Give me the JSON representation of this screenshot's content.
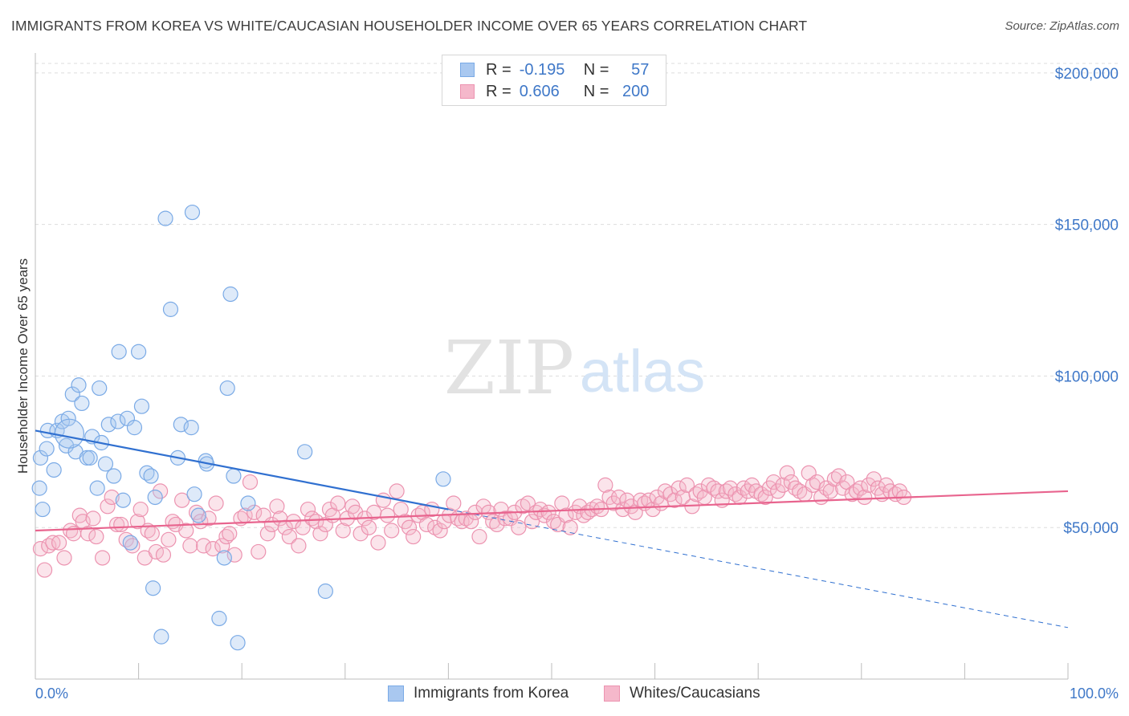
{
  "title": "IMMIGRANTS FROM KOREA VS WHITE/CAUCASIAN HOUSEHOLDER INCOME OVER 65 YEARS CORRELATION CHART",
  "source": "Source: ZipAtlas.com",
  "watermark": {
    "zip": "ZIP",
    "atlas": "atlas"
  },
  "colors": {
    "blue_fill": "#a9c8f0",
    "blue_stroke": "#7aaae6",
    "blue_line": "#3070d0",
    "pink_fill": "#f5b8cb",
    "pink_stroke": "#ec93b0",
    "pink_line": "#e8648e",
    "tick_text": "#3f78c8",
    "grid": "#dddddd"
  },
  "legend": {
    "rows": [
      {
        "r_label": "R =",
        "r_value": "-0.195",
        "n_label": "N =",
        "n_value": "57"
      },
      {
        "r_label": "R =",
        "r_value": "0.606",
        "n_label": "N =",
        "n_value": "200"
      }
    ]
  },
  "chart_data": {
    "type": "scatter",
    "title": "IMMIGRANTS FROM KOREA VS WHITE/CAUCASIAN HOUSEHOLDER INCOME OVER 65 YEARS CORRELATION CHART",
    "xlabel": "",
    "ylabel": "Householder Income Over 65 years",
    "xlim": [
      0,
      100
    ],
    "ylim": [
      0,
      205000
    ],
    "x_tick_labels": [
      "0.0%",
      "100.0%"
    ],
    "y_ticks": [
      50000,
      100000,
      150000,
      200000
    ],
    "y_tick_labels": [
      "$50,000",
      "$100,000",
      "$150,000",
      "$200,000"
    ],
    "grid": true,
    "legend_position": "top-center",
    "series": [
      {
        "name": "Immigrants from Korea",
        "trend": {
          "x0": 0,
          "y0": 82000,
          "x1": 40,
          "y1": 56000,
          "dashed_to_x": 100,
          "dashed_to_y": 17000
        },
        "points": [
          [
            0.4,
            63000
          ],
          [
            0.5,
            73000
          ],
          [
            0.7,
            56000
          ],
          [
            1.1,
            76000
          ],
          [
            1.2,
            82000
          ],
          [
            1.8,
            69000
          ],
          [
            2.1,
            82000
          ],
          [
            2.6,
            85000
          ],
          [
            3.0,
            77000
          ],
          [
            3.2,
            86000
          ],
          [
            3.6,
            94000
          ],
          [
            3.9,
            75000
          ],
          [
            4.2,
            97000
          ],
          [
            4.5,
            91000
          ],
          [
            5.0,
            73000
          ],
          [
            5.3,
            73000
          ],
          [
            5.5,
            80000
          ],
          [
            6.2,
            96000
          ],
          [
            6.4,
            78000
          ],
          [
            6.8,
            71000
          ],
          [
            7.1,
            84000
          ],
          [
            7.6,
            67000
          ],
          [
            8.0,
            85000
          ],
          [
            8.1,
            108000
          ],
          [
            8.5,
            59000
          ],
          [
            8.9,
            86000
          ],
          [
            9.2,
            45000
          ],
          [
            9.6,
            83000
          ],
          [
            10.0,
            108000
          ],
          [
            10.3,
            90000
          ],
          [
            10.8,
            68000
          ],
          [
            11.2,
            67000
          ],
          [
            11.4,
            30000
          ],
          [
            11.6,
            60000
          ],
          [
            12.2,
            14000
          ],
          [
            12.6,
            152000
          ],
          [
            13.1,
            122000
          ],
          [
            13.8,
            73000
          ],
          [
            14.1,
            84000
          ],
          [
            15.1,
            83000
          ],
          [
            15.2,
            154000
          ],
          [
            15.4,
            61000
          ],
          [
            15.8,
            54000
          ],
          [
            16.5,
            72000
          ],
          [
            16.6,
            71000
          ],
          [
            17.8,
            20000
          ],
          [
            18.3,
            40000
          ],
          [
            18.6,
            96000
          ],
          [
            18.9,
            127000
          ],
          [
            19.2,
            67000
          ],
          [
            19.6,
            12000
          ],
          [
            20.6,
            58000
          ],
          [
            26.1,
            75000
          ],
          [
            28.1,
            29000
          ],
          [
            39.5,
            66000
          ],
          [
            6.0,
            63000
          ],
          [
            3.3,
            81000
          ]
        ]
      },
      {
        "name": "Whites/Caucasians",
        "trend": {
          "x0": 0,
          "y0": 49000,
          "x1": 100,
          "y1": 62000
        },
        "points": [
          [
            0.5,
            43000
          ],
          [
            0.9,
            36000
          ],
          [
            1.3,
            44000
          ],
          [
            1.7,
            45000
          ],
          [
            2.3,
            45000
          ],
          [
            2.8,
            40000
          ],
          [
            3.4,
            49000
          ],
          [
            3.7,
            48000
          ],
          [
            4.3,
            54000
          ],
          [
            4.6,
            52000
          ],
          [
            5.1,
            48000
          ],
          [
            5.6,
            53000
          ],
          [
            5.9,
            47000
          ],
          [
            6.5,
            40000
          ],
          [
            7.0,
            57000
          ],
          [
            7.4,
            60000
          ],
          [
            7.9,
            51000
          ],
          [
            8.3,
            51000
          ],
          [
            8.8,
            46000
          ],
          [
            9.4,
            44000
          ],
          [
            9.9,
            52000
          ],
          [
            10.2,
            56000
          ],
          [
            10.6,
            40000
          ],
          [
            10.9,
            49000
          ],
          [
            11.3,
            48000
          ],
          [
            11.7,
            42000
          ],
          [
            12.1,
            62000
          ],
          [
            12.4,
            41000
          ],
          [
            12.9,
            46000
          ],
          [
            13.3,
            52000
          ],
          [
            13.6,
            51000
          ],
          [
            14.2,
            59000
          ],
          [
            14.6,
            49000
          ],
          [
            15.0,
            44000
          ],
          [
            15.6,
            55000
          ],
          [
            16.0,
            52000
          ],
          [
            16.3,
            44000
          ],
          [
            16.8,
            53000
          ],
          [
            17.2,
            43000
          ],
          [
            17.5,
            58000
          ],
          [
            18.1,
            44000
          ],
          [
            18.5,
            47000
          ],
          [
            18.8,
            48000
          ],
          [
            19.3,
            41000
          ],
          [
            19.9,
            53000
          ],
          [
            20.3,
            54000
          ],
          [
            20.8,
            65000
          ],
          [
            21.2,
            55000
          ],
          [
            21.6,
            42000
          ],
          [
            22.1,
            54000
          ],
          [
            22.5,
            48000
          ],
          [
            22.9,
            51000
          ],
          [
            23.4,
            57000
          ],
          [
            23.7,
            53000
          ],
          [
            24.2,
            50000
          ],
          [
            24.6,
            47000
          ],
          [
            25.0,
            52000
          ],
          [
            25.5,
            44000
          ],
          [
            25.9,
            50000
          ],
          [
            26.4,
            56000
          ],
          [
            26.8,
            53000
          ],
          [
            27.2,
            52000
          ],
          [
            27.6,
            48000
          ],
          [
            28.1,
            51000
          ],
          [
            28.5,
            56000
          ],
          [
            28.8,
            54000
          ],
          [
            29.3,
            58000
          ],
          [
            29.8,
            49000
          ],
          [
            30.2,
            53000
          ],
          [
            30.7,
            57000
          ],
          [
            31.0,
            55000
          ],
          [
            31.5,
            48000
          ],
          [
            31.9,
            53000
          ],
          [
            32.3,
            50000
          ],
          [
            32.8,
            55000
          ],
          [
            33.2,
            45000
          ],
          [
            33.7,
            59000
          ],
          [
            34.1,
            54000
          ],
          [
            34.5,
            49000
          ],
          [
            35.0,
            62000
          ],
          [
            35.4,
            56000
          ],
          [
            35.8,
            52000
          ],
          [
            36.2,
            50000
          ],
          [
            36.6,
            47000
          ],
          [
            37.1,
            54000
          ],
          [
            37.5,
            55000
          ],
          [
            37.9,
            51000
          ],
          [
            38.4,
            56000
          ],
          [
            38.7,
            50000
          ],
          [
            39.2,
            49000
          ],
          [
            39.6,
            52000
          ],
          [
            40.1,
            54000
          ],
          [
            40.5,
            58000
          ],
          [
            40.9,
            53000
          ],
          [
            41.3,
            52000
          ],
          [
            41.7,
            53000
          ],
          [
            42.2,
            52000
          ],
          [
            42.6,
            55000
          ],
          [
            43.0,
            47000
          ],
          [
            43.4,
            57000
          ],
          [
            43.9,
            55000
          ],
          [
            44.3,
            52000
          ],
          [
            44.7,
            51000
          ],
          [
            45.1,
            56000
          ],
          [
            45.5,
            53000
          ],
          [
            46.0,
            53000
          ],
          [
            46.4,
            55000
          ],
          [
            46.8,
            50000
          ],
          [
            47.2,
            57000
          ],
          [
            47.7,
            58000
          ],
          [
            48.1,
            52000
          ],
          [
            48.5,
            55000
          ],
          [
            48.9,
            56000
          ],
          [
            49.3,
            54000
          ],
          [
            49.7,
            55000
          ],
          [
            50.2,
            52000
          ],
          [
            50.6,
            51000
          ],
          [
            51.0,
            58000
          ],
          [
            51.4,
            54000
          ],
          [
            51.8,
            50000
          ],
          [
            52.3,
            55000
          ],
          [
            52.7,
            57000
          ],
          [
            53.1,
            54000
          ],
          [
            53.5,
            55000
          ],
          [
            53.9,
            56000
          ],
          [
            54.4,
            57000
          ],
          [
            54.8,
            56000
          ],
          [
            55.2,
            64000
          ],
          [
            55.6,
            60000
          ],
          [
            56.0,
            58000
          ],
          [
            56.5,
            60000
          ],
          [
            56.9,
            56000
          ],
          [
            57.3,
            59000
          ],
          [
            57.7,
            57000
          ],
          [
            58.1,
            55000
          ],
          [
            58.6,
            59000
          ],
          [
            59.0,
            58000
          ],
          [
            59.4,
            59000
          ],
          [
            59.8,
            56000
          ],
          [
            60.2,
            60000
          ],
          [
            60.6,
            58000
          ],
          [
            61.0,
            62000
          ],
          [
            61.5,
            61000
          ],
          [
            61.9,
            59000
          ],
          [
            62.3,
            63000
          ],
          [
            62.7,
            60000
          ],
          [
            63.1,
            64000
          ],
          [
            63.6,
            57000
          ],
          [
            64.0,
            61000
          ],
          [
            64.4,
            62000
          ],
          [
            64.8,
            60000
          ],
          [
            65.2,
            64000
          ],
          [
            65.7,
            63000
          ],
          [
            66.1,
            62000
          ],
          [
            66.5,
            59000
          ],
          [
            66.9,
            62000
          ],
          [
            67.3,
            63000
          ],
          [
            67.8,
            61000
          ],
          [
            68.2,
            60000
          ],
          [
            68.6,
            63000
          ],
          [
            69.0,
            62000
          ],
          [
            69.4,
            64000
          ],
          [
            69.8,
            62000
          ],
          [
            70.3,
            61000
          ],
          [
            70.7,
            60000
          ],
          [
            71.1,
            63000
          ],
          [
            71.5,
            65000
          ],
          [
            71.9,
            62000
          ],
          [
            72.4,
            64000
          ],
          [
            72.8,
            68000
          ],
          [
            73.2,
            65000
          ],
          [
            73.6,
            63000
          ],
          [
            74.0,
            62000
          ],
          [
            74.5,
            61000
          ],
          [
            74.9,
            68000
          ],
          [
            75.3,
            64000
          ],
          [
            75.7,
            65000
          ],
          [
            76.1,
            60000
          ],
          [
            76.6,
            63000
          ],
          [
            77.0,
            62000
          ],
          [
            77.4,
            66000
          ],
          [
            77.8,
            67000
          ],
          [
            78.2,
            63000
          ],
          [
            78.6,
            65000
          ],
          [
            79.1,
            61000
          ],
          [
            79.5,
            62000
          ],
          [
            79.9,
            63000
          ],
          [
            80.3,
            60000
          ],
          [
            80.7,
            64000
          ],
          [
            81.2,
            66000
          ],
          [
            81.6,
            63000
          ],
          [
            82.0,
            61000
          ],
          [
            82.4,
            64000
          ],
          [
            82.8,
            62000
          ],
          [
            83.3,
            61000
          ],
          [
            83.7,
            62000
          ],
          [
            84.1,
            60000
          ]
        ]
      }
    ]
  },
  "bottom_legend": {
    "series_a": "Immigrants from Korea",
    "series_b": "Whites/Caucasians"
  }
}
